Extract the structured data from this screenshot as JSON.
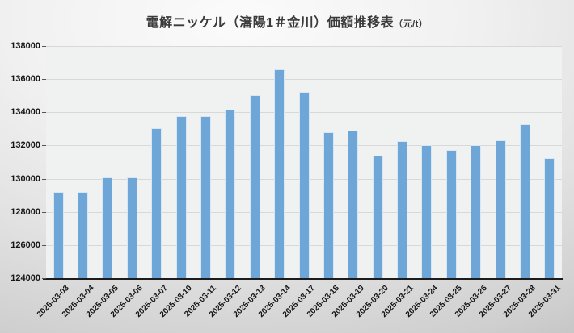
{
  "chart_data": {
    "type": "bar",
    "title": "電解ニッケル（瀋陽1＃金川）価額推移表",
    "title_unit": "（元/t）",
    "categories": [
      "2025-03-03",
      "2025-03-04",
      "2025-03-05",
      "2025-03-06",
      "2025-03-07",
      "2025-03-10",
      "2025-03-11",
      "2025-03-12",
      "2025-03-13",
      "2025-03-14",
      "2025-03-17",
      "2025-03-18",
      "2025-03-19",
      "2025-03-20",
      "2025-03-21",
      "2025-03-24",
      "2025-03-25",
      "2025-03-26",
      "2025-03-27",
      "2025-03-28",
      "2025-03-31"
    ],
    "values": [
      129200,
      129200,
      130100,
      130100,
      133050,
      133750,
      133750,
      134150,
      135050,
      136600,
      135250,
      132800,
      132900,
      131400,
      132250,
      132000,
      131750,
      132000,
      132300,
      133300,
      131250
    ],
    "xlabel": "",
    "ylabel": "",
    "ylim": [
      124000,
      138000
    ],
    "ytick_step": 2000,
    "yticks": [
      124000,
      126000,
      128000,
      130000,
      132000,
      134000,
      136000,
      138000
    ],
    "grid": true,
    "legend_position": "none",
    "bar_color": "#6fa6d8",
    "bar_edge_color": "#d9e7f4",
    "plot_bg_color": "#f0f1f1",
    "gridline_color": "#d8d8d8",
    "axis_line_color": "#1c1c1c"
  }
}
